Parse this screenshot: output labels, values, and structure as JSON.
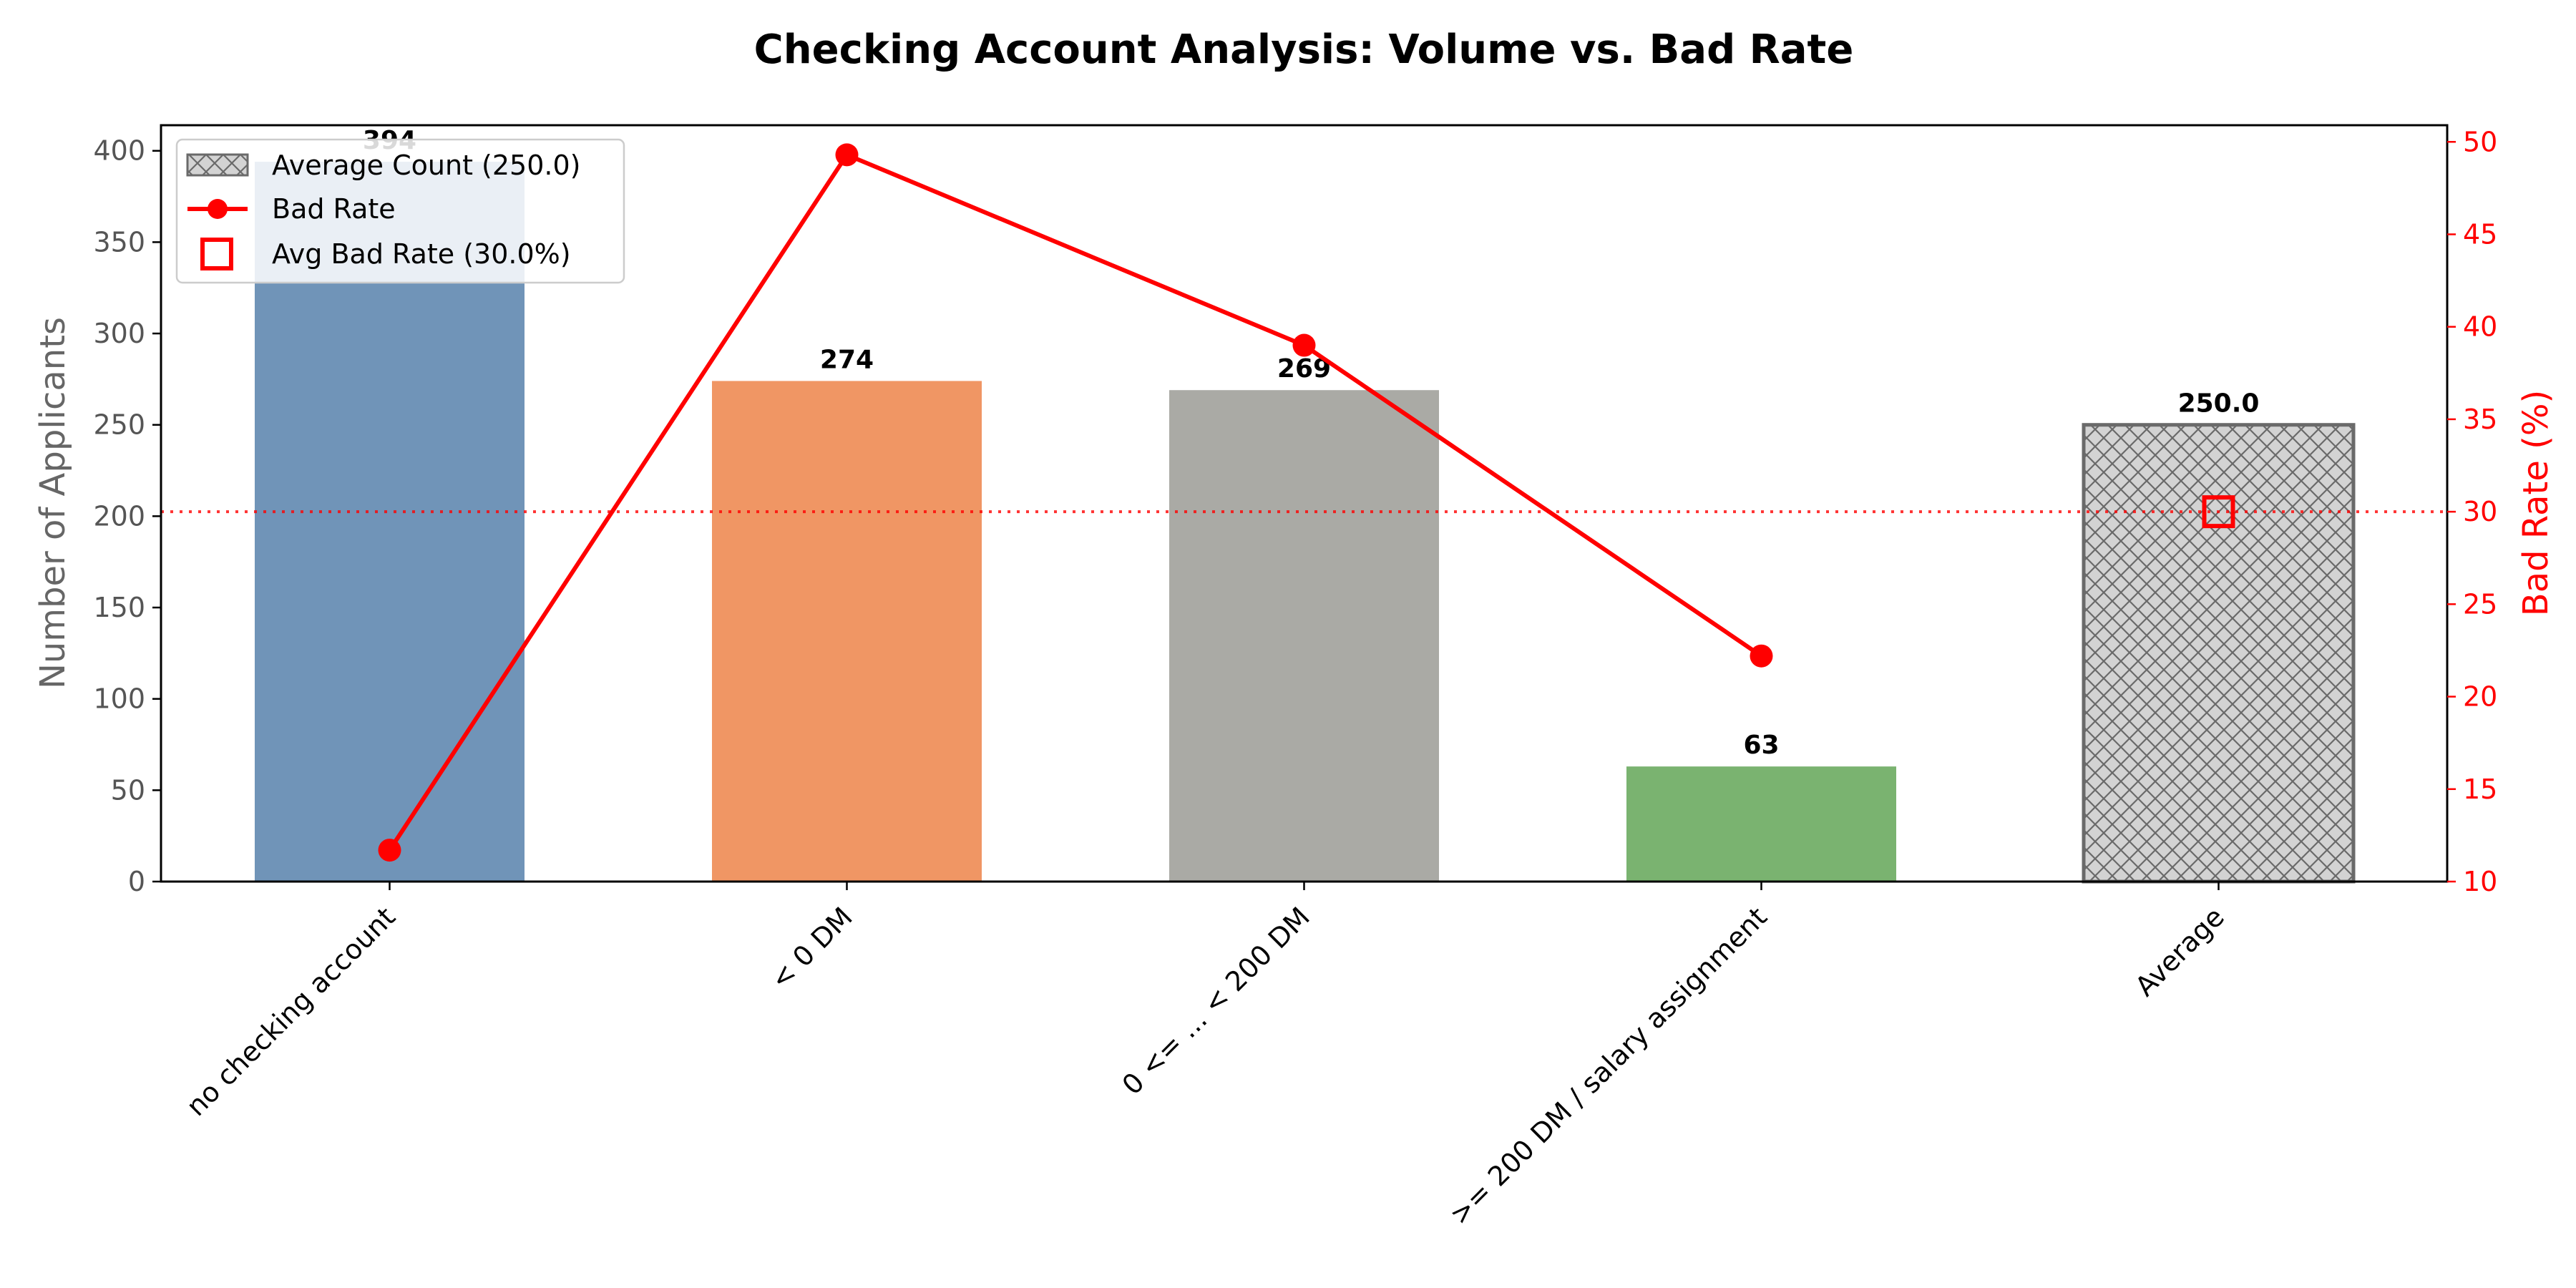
{
  "chart_data": {
    "type": "bar+line",
    "title": "Checking Account Analysis: Volume vs. Bad Rate",
    "categories": [
      "no checking account",
      "< 0 DM",
      "0 <= ... < 200 DM",
      ">= 200 DM / salary assignment",
      "Average"
    ],
    "bars": {
      "name": "Number of Applicants",
      "values": [
        394,
        274,
        269,
        63,
        250.0
      ],
      "labels": [
        "394",
        "274",
        "269",
        "63",
        "250.0"
      ],
      "colors": [
        "#7094b8",
        "#f09664",
        "#aaaaa5",
        "#7ab370",
        "#d3d3d3"
      ]
    },
    "line": {
      "name": "Bad Rate",
      "values": [
        11.7,
        49.3,
        39.0,
        22.2
      ],
      "color": "#ff0000"
    },
    "average_marker": {
      "name": "Avg Bad Rate",
      "value": 30.0
    },
    "ref_line": {
      "value": 30.0,
      "color": "#ff0000",
      "style": "dotted"
    },
    "ylabel": "Number of Applicants",
    "y2label": "Bad Rate (%)",
    "ylim": [
      0,
      414
    ],
    "y2lim": [
      10,
      50.9
    ],
    "yticks": [
      "0",
      "50",
      "100",
      "150",
      "200",
      "250",
      "300",
      "350",
      "400"
    ],
    "y2ticks": [
      "10",
      "15",
      "20",
      "25",
      "30",
      "35",
      "40",
      "45",
      "50"
    ],
    "legend": {
      "position": "upper-left",
      "entries": [
        "Average Count (250.0)",
        "Bad Rate",
        "Avg Bad Rate (30.0%)"
      ]
    }
  }
}
